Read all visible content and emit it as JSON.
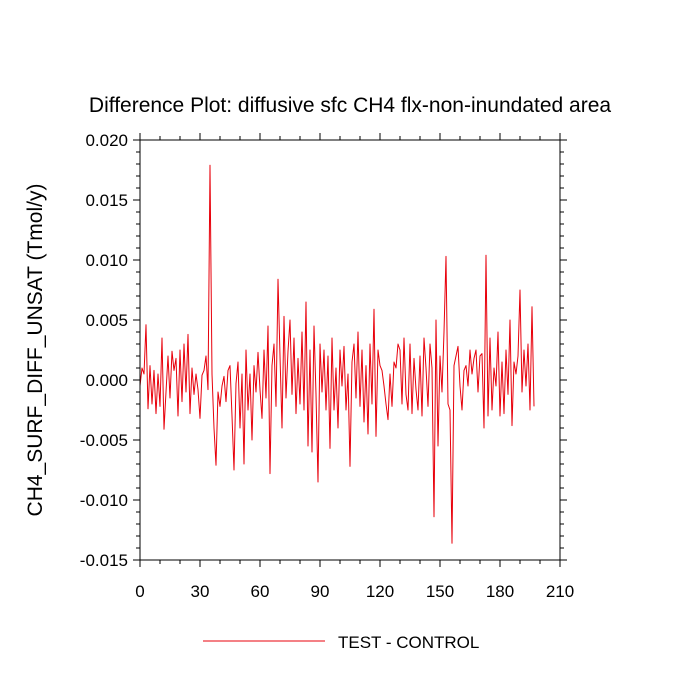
{
  "chart_data": {
    "type": "line",
    "title": "Difference Plot: diffusive sfc CH4 flx-non-inundated area",
    "xlabel": "",
    "ylabel": "CH4_SURF_DIFF_UNSAT  (Tmol/y)",
    "xlim": [
      0,
      210
    ],
    "ylim": [
      -0.015,
      0.02
    ],
    "xticks": [
      0,
      30,
      60,
      90,
      120,
      150,
      180,
      210
    ],
    "xtick_labels": [
      "0",
      "30",
      "60",
      "90",
      "120",
      "150",
      "180",
      "210"
    ],
    "yticks": [
      -0.015,
      -0.01,
      -0.005,
      0.0,
      0.005,
      0.01,
      0.015,
      0.02
    ],
    "ytick_labels": [
      "-0.015",
      "-0.010",
      "-0.005",
      "0.000",
      "0.005",
      "0.010",
      "0.015",
      "0.020"
    ],
    "series": [
      {
        "name": "TEST - CONTROL",
        "color": "#e8000b",
        "x_start": 0,
        "x_step": 1,
        "values": [
          -0.0005,
          0.001,
          0.0005,
          0.0046,
          -0.0024,
          0.0012,
          -0.002,
          0.0008,
          -0.0028,
          0.0005,
          -0.0022,
          0.0035,
          -0.0041,
          -0.001,
          0.002,
          -0.0015,
          0.0024,
          0.0008,
          0.0018,
          -0.003,
          0.0025,
          -0.0018,
          0.003,
          -0.001,
          0.0038,
          -0.0028,
          0.001,
          -0.0012,
          0.0005,
          -0.0008,
          -0.0032,
          0.0004,
          0.0008,
          0.002,
          -0.0008,
          0.0179,
          0.0005,
          -0.004,
          -0.0071,
          -0.001,
          -0.0022,
          -0.0005,
          0.0003,
          -0.0018,
          0.0008,
          0.0012,
          -0.003,
          -0.0075,
          -0.0003,
          0.0015,
          -0.004,
          0.0005,
          -0.007,
          0.0025,
          -0.0025,
          0.0005,
          -0.005,
          0.0012,
          -0.001,
          0.0023,
          -0.0008,
          -0.0032,
          0.0025,
          -0.0015,
          0.0045,
          -0.0078,
          0.0012,
          0.003,
          -0.0022,
          0.0084,
          0.002,
          -0.004,
          0.0053,
          -0.0015,
          0.0024,
          0.005,
          -0.0012,
          0.0035,
          -0.0028,
          0.0018,
          -0.002,
          0.004,
          -0.0025,
          0.0065,
          -0.0055,
          0.0025,
          -0.006,
          0.0045,
          -0.0012,
          -0.0085,
          0.003,
          -0.001,
          0.0025,
          -0.0025,
          0.002,
          -0.0057,
          0.0035,
          -0.0025,
          0.001,
          -0.004,
          0.0025,
          -0.0005,
          0.0028,
          -0.0025,
          0.0005,
          -0.0072,
          0.0015,
          0.003,
          -0.0015,
          0.004,
          -0.0022,
          0.0025,
          -0.0035,
          0.0012,
          -0.0045,
          0.003,
          -0.002,
          0.0059,
          -0.0047,
          0.0025,
          0.0012,
          0.0008,
          -0.0005,
          -0.002,
          -0.0033,
          0.0005,
          -0.0022,
          0.0015,
          0.001,
          0.003,
          0.0025,
          -0.002,
          0.0035,
          -0.0012,
          -0.0025,
          0.003,
          -0.0028,
          0.0018,
          -0.0008,
          -0.0025,
          0.002,
          -0.003,
          0.0035,
          0.001,
          -0.0022,
          0.003,
          0.001,
          -0.0114,
          0.005,
          -0.0055,
          0.002,
          -0.001,
          0.004,
          0.0103,
          -0.002,
          -0.0025,
          -0.0136,
          0.0012,
          0.002,
          0.0028,
          -0.0005,
          -0.0025,
          0.0008,
          0.0012,
          -0.0005,
          0.0025,
          0.0005,
          0.0018,
          0.0025,
          -0.001,
          0.002,
          0.0022,
          -0.004,
          0.0104,
          -0.003,
          0.0035,
          -0.0025,
          0.001,
          -0.0005,
          0.004,
          -0.003,
          0.0015,
          -0.0028,
          0.0025,
          -0.0012,
          0.005,
          -0.0038,
          0.0015,
          0.0005,
          0.002,
          0.0075,
          -0.001,
          0.0025,
          -0.0005,
          0.003,
          -0.0025,
          0.0061,
          -0.0022
        ]
      }
    ],
    "legend_position": "bottom-center",
    "grid": false
  }
}
